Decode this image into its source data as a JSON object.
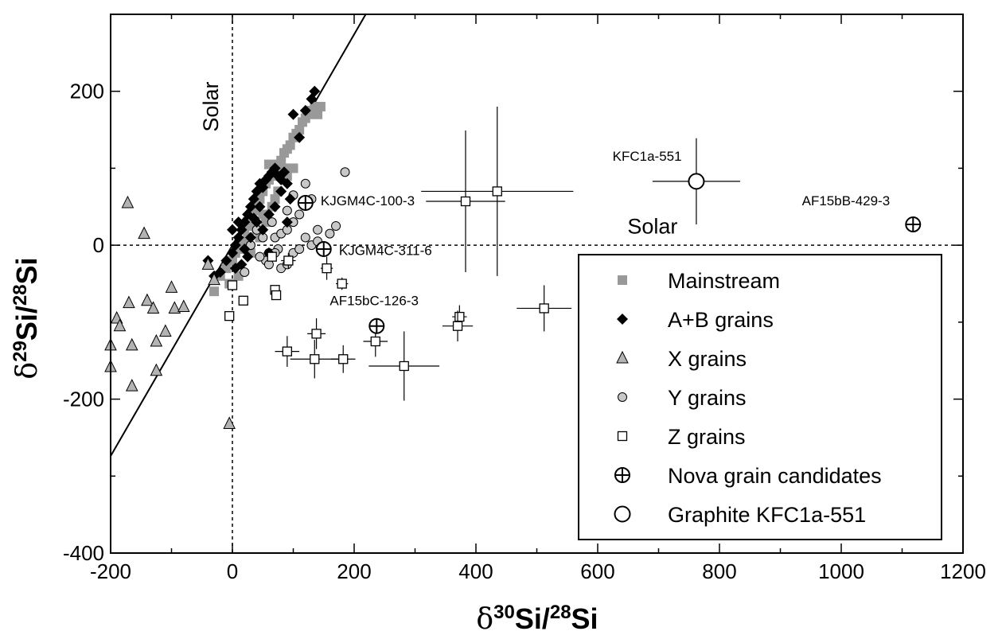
{
  "chart_data": {
    "type": "scatter",
    "xlabel": {
      "symbol": "δ",
      "iso_num": "30",
      "iso_el": "Si",
      "sep": "/",
      "iso_den": "28",
      "den_el": "Si"
    },
    "ylabel": {
      "symbol": "δ",
      "iso_num": "29",
      "iso_el": "Si",
      "sep": "/",
      "iso_den": "28",
      "den_el": "Si"
    },
    "xlim": [
      -200,
      1200
    ],
    "ylim": [
      -400,
      300
    ],
    "xticks": [
      -200,
      0,
      200,
      400,
      600,
      800,
      1000,
      1200
    ],
    "xtick_labels": [
      "-200",
      "0",
      "200",
      "400",
      "600",
      "800",
      "1000",
      "1200"
    ],
    "yticks": [
      -400,
      -200,
      0,
      200
    ],
    "ytick_labels": [
      "-400",
      "-200",
      "0",
      "200"
    ],
    "reference_lines": {
      "solar_label_vertical": "Solar",
      "solar_label_horizontal": "Solar"
    },
    "mainstream_line": {
      "slope": 1.37,
      "intercept": 0
    },
    "colors": {
      "mainstream": "#999999",
      "x_grains": "#b3b3b3",
      "y_grains": "#c8c8c8",
      "ink": "#000000"
    },
    "legend": {
      "placement": "bottom-right",
      "entries": [
        "Mainstream",
        "A+B grains",
        "X grains",
        "Y grains",
        "Z grains",
        "Nova grain candidates",
        "Graphite KFC1a-551"
      ]
    },
    "series": [
      {
        "name": "Mainstream",
        "marker": "square-gray",
        "points": [
          [
            -30,
            -60
          ],
          [
            -20,
            -40
          ],
          [
            -10,
            -30
          ],
          [
            0,
            -20
          ],
          [
            5,
            -10
          ],
          [
            10,
            -5
          ],
          [
            15,
            5
          ],
          [
            20,
            20
          ],
          [
            25,
            30
          ],
          [
            30,
            40
          ],
          [
            35,
            45
          ],
          [
            40,
            55
          ],
          [
            45,
            60
          ],
          [
            50,
            70
          ],
          [
            55,
            80
          ],
          [
            60,
            85
          ],
          [
            65,
            90
          ],
          [
            70,
            95
          ],
          [
            75,
            105
          ],
          [
            80,
            110
          ],
          [
            85,
            120
          ],
          [
            90,
            125
          ],
          [
            95,
            130
          ],
          [
            100,
            140
          ],
          [
            105,
            145
          ],
          [
            110,
            150
          ],
          [
            115,
            160
          ],
          [
            120,
            165
          ],
          [
            125,
            170
          ],
          [
            130,
            175
          ],
          [
            135,
            180
          ],
          [
            140,
            170
          ],
          [
            145,
            180
          ],
          [
            85,
            100
          ],
          [
            60,
            105
          ],
          [
            25,
            10
          ],
          [
            40,
            20
          ],
          [
            50,
            40
          ],
          [
            70,
            60
          ],
          [
            30,
            -10
          ],
          [
            45,
            10
          ],
          [
            55,
            30
          ],
          [
            65,
            50
          ],
          [
            75,
            70
          ],
          [
            10,
            -40
          ],
          [
            -5,
            -50
          ],
          [
            20,
            0
          ],
          [
            35,
            25
          ],
          [
            90,
            90
          ],
          [
            100,
            100
          ]
        ]
      },
      {
        "name": "A+B grains",
        "marker": "diamond-black",
        "points": [
          [
            -40,
            -20
          ],
          [
            -30,
            -40
          ],
          [
            -20,
            -35
          ],
          [
            -10,
            -20
          ],
          [
            0,
            -10
          ],
          [
            5,
            0
          ],
          [
            10,
            10
          ],
          [
            15,
            20
          ],
          [
            20,
            30
          ],
          [
            25,
            40
          ],
          [
            30,
            50
          ],
          [
            35,
            60
          ],
          [
            40,
            70
          ],
          [
            45,
            80
          ],
          [
            50,
            75
          ],
          [
            55,
            85
          ],
          [
            60,
            90
          ],
          [
            65,
            95
          ],
          [
            70,
            100
          ],
          [
            75,
            90
          ],
          [
            80,
            85
          ],
          [
            85,
            95
          ],
          [
            90,
            80
          ],
          [
            95,
            60
          ],
          [
            40,
            30
          ],
          [
            30,
            10
          ],
          [
            20,
            -5
          ],
          [
            50,
            20
          ],
          [
            60,
            40
          ],
          [
            70,
            50
          ],
          [
            80,
            70
          ],
          [
            90,
            30
          ],
          [
            110,
            140
          ],
          [
            120,
            175
          ],
          [
            130,
            190
          ],
          [
            135,
            200
          ],
          [
            100,
            170
          ],
          [
            10,
            30
          ],
          [
            0,
            20
          ],
          [
            25,
            -15
          ],
          [
            60,
            -10
          ],
          [
            45,
            50
          ],
          [
            35,
            35
          ],
          [
            15,
            -25
          ],
          [
            5,
            -30
          ]
        ]
      },
      {
        "name": "X grains",
        "marker": "triangle-gray",
        "points": [
          [
            -172,
            55
          ],
          [
            -145,
            15
          ],
          [
            -200,
            -130
          ],
          [
            -200,
            -158
          ],
          [
            -190,
            -95
          ],
          [
            -185,
            -105
          ],
          [
            -170,
            -75
          ],
          [
            -165,
            -130
          ],
          [
            -165,
            -183
          ],
          [
            -140,
            -72
          ],
          [
            -130,
            -82
          ],
          [
            -125,
            -163
          ],
          [
            -125,
            -125
          ],
          [
            -110,
            -112
          ],
          [
            -100,
            -55
          ],
          [
            -95,
            -82
          ],
          [
            -80,
            -80
          ],
          [
            -40,
            -25
          ],
          [
            -30,
            -45
          ],
          [
            -5,
            -232
          ]
        ]
      },
      {
        "name": "Y grains",
        "marker": "circle-gray",
        "points": [
          [
            30,
            0
          ],
          [
            40,
            20
          ],
          [
            50,
            10
          ],
          [
            60,
            -10
          ],
          [
            70,
            10
          ],
          [
            80,
            15
          ],
          [
            90,
            20
          ],
          [
            100,
            30
          ],
          [
            110,
            40
          ],
          [
            120,
            10
          ],
          [
            130,
            0
          ],
          [
            140,
            5
          ],
          [
            150,
            -5
          ],
          [
            160,
            15
          ],
          [
            170,
            25
          ],
          [
            185,
            95
          ],
          [
            120,
            80
          ],
          [
            100,
            65
          ],
          [
            90,
            45
          ],
          [
            75,
            -5
          ],
          [
            55,
            -20
          ],
          [
            45,
            -15
          ],
          [
            80,
            -30
          ],
          [
            70,
            -10
          ],
          [
            100,
            -10
          ],
          [
            130,
            60
          ],
          [
            110,
            -5
          ],
          [
            90,
            -25
          ],
          [
            60,
            -25
          ],
          [
            20,
            -35
          ],
          [
            65,
            30
          ],
          [
            140,
            20
          ]
        ]
      },
      {
        "name": "Z grains",
        "marker": "square-open",
        "points": [
          {
            "x": 0,
            "y": -52,
            "ex": 0,
            "ey": 0
          },
          {
            "x": -5,
            "y": -92,
            "ex": 0,
            "ey": 0
          },
          {
            "x": 18,
            "y": -72,
            "ex": 0,
            "ey": 0
          },
          {
            "x": 65,
            "y": -15,
            "ex": 0,
            "ey": 0
          },
          {
            "x": 70,
            "y": -58,
            "ex": 0,
            "ey": 0
          },
          {
            "x": 72,
            "y": -65,
            "ex": 0,
            "ey": 0
          },
          {
            "x": 92,
            "y": -20,
            "ex": 12,
            "ey": 10
          },
          {
            "x": 155,
            "y": -30,
            "ex": 10,
            "ey": 15
          },
          {
            "x": 180,
            "y": -50,
            "ex": 10,
            "ey": 8
          },
          {
            "x": 90,
            "y": -138,
            "ex": 20,
            "ey": 20
          },
          {
            "x": 138,
            "y": -115,
            "ex": 15,
            "ey": 20
          },
          {
            "x": 135,
            "y": -148,
            "ex": 40,
            "ey": 25
          },
          {
            "x": 182,
            "y": -148,
            "ex": 20,
            "ey": 18
          },
          {
            "x": 235,
            "y": -125,
            "ex": 20,
            "ey": 20
          },
          {
            "x": 282,
            "y": -157,
            "ex": 58,
            "ey": 45
          },
          {
            "x": 373,
            "y": -93,
            "ex": 12,
            "ey": 15
          },
          {
            "x": 370,
            "y": -105,
            "ex": 25,
            "ey": 20
          },
          {
            "x": 383,
            "y": 57,
            "ex": 65,
            "ey": 92
          },
          {
            "x": 435,
            "y": 70,
            "ex": 125,
            "ey": 110
          },
          {
            "x": 512,
            "y": -82,
            "ex": 45,
            "ey": 30
          }
        ]
      },
      {
        "name": "Nova grain candidates",
        "marker": "circle-plus",
        "points": [
          [
            120,
            55
          ],
          [
            150,
            -5
          ],
          [
            237,
            -105
          ],
          [
            1118,
            27
          ]
        ]
      },
      {
        "name": "Graphite KFC1a-551",
        "marker": "circle-open-large",
        "points": [
          {
            "x": 762,
            "y": 83,
            "ex": 72,
            "ey": 56
          }
        ]
      }
    ],
    "annotations": [
      {
        "text": "KJGM4C-100-3",
        "x": 145,
        "y": 52,
        "anchor": "start"
      },
      {
        "text": "KJGM4C-311-6",
        "x": 175,
        "y": -13,
        "anchor": "start"
      },
      {
        "text": "AF15bC-126-3",
        "x": 160,
        "y": -78,
        "anchor": "start"
      },
      {
        "text": "KFC1a-551",
        "x": 738,
        "y": 110,
        "anchor": "end"
      },
      {
        "text": "AF15bB-429-3",
        "x": 1080,
        "y": 52,
        "anchor": "end"
      }
    ]
  }
}
